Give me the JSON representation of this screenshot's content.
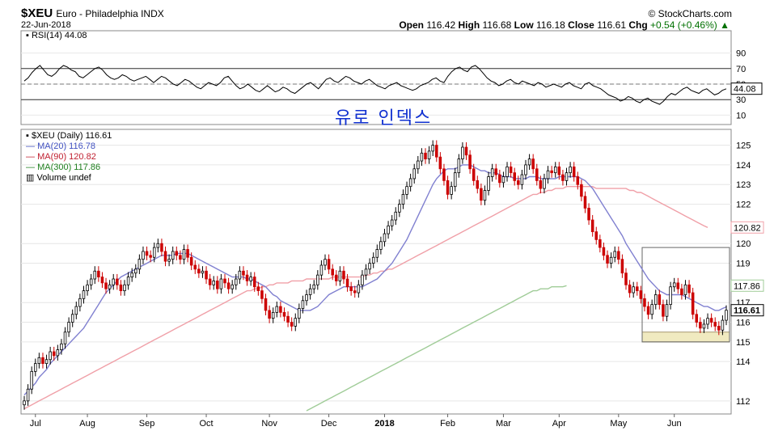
{
  "header": {
    "symbol": "$XEU",
    "name": "Euro - Philadelphia INDX",
    "date": "22-Jun-2018",
    "source": "© StockCharts.com",
    "open_label": "Open",
    "open": "116.42",
    "high_label": "High",
    "high": "116.68",
    "low_label": "Low",
    "low": "116.18",
    "close_label": "Close",
    "close": "116.61",
    "chg_label": "Chg",
    "chg": "+0.54 (+0.46%)"
  },
  "annotation": "유로 인덱스",
  "colors": {
    "up": "#000000",
    "down": "#cc0000",
    "ma20": "#8080d0",
    "ma90": "#f0a0a8",
    "ma300": "#a0cc98",
    "rsi": "#000000",
    "highlight_box": "#f0eac0"
  },
  "chart_data": [
    {
      "type": "line",
      "panel": "RSI",
      "legend": "RSI(14) 44.08",
      "current_value": "44.08",
      "ylim": [
        0,
        100
      ],
      "reference_lines": [
        30,
        50,
        70
      ],
      "y_ticks": [
        "90",
        "70",
        "50",
        "30",
        "10"
      ],
      "values": [
        54,
        58,
        65,
        70,
        74,
        68,
        62,
        60,
        64,
        70,
        74,
        72,
        68,
        66,
        60,
        58,
        62,
        66,
        70,
        72,
        68,
        62,
        58,
        56,
        58,
        62,
        60,
        56,
        54,
        56,
        58,
        60,
        56,
        52,
        56,
        60,
        58,
        54,
        50,
        48,
        52,
        56,
        54,
        50,
        46,
        44,
        48,
        52,
        50,
        48,
        52,
        58,
        60,
        54,
        48,
        44,
        46,
        50,
        46,
        42,
        40,
        44,
        48,
        44,
        40,
        42,
        46,
        44,
        40,
        38,
        42,
        46,
        50,
        52,
        48,
        44,
        50,
        56,
        58,
        54,
        52,
        56,
        60,
        58,
        54,
        52,
        50,
        54,
        56,
        52,
        48,
        46,
        44,
        48,
        50,
        52,
        48,
        46,
        44,
        42,
        44,
        48,
        50,
        52,
        56,
        58,
        54,
        52,
        60,
        66,
        70,
        72,
        68,
        66,
        72,
        74,
        70,
        64,
        58,
        54,
        52,
        48,
        50,
        54,
        56,
        52,
        50,
        54,
        52,
        50,
        48,
        52,
        50,
        46,
        48,
        50,
        48,
        46,
        50,
        52,
        48,
        46,
        44,
        50,
        52,
        48,
        46,
        44,
        40,
        36,
        34,
        32,
        28,
        30,
        34,
        32,
        28,
        26,
        30,
        32,
        28,
        26,
        24,
        28,
        34,
        38,
        36,
        40,
        44,
        46,
        42,
        40,
        38,
        42,
        44,
        40,
        36,
        38,
        42,
        44
      ]
    },
    {
      "type": "candlestick",
      "panel": "Price",
      "legend": [
        "$XEU (Daily) 116.61",
        "MA(20) 116.78",
        "MA(90) 120.82",
        "MA(300) 117.86",
        "Volume undef"
      ],
      "y_ticks": [
        "125",
        "124",
        "123",
        "122",
        "120",
        "119",
        "117",
        "116",
        "115",
        "114",
        "112"
      ],
      "price_tag": "116.61",
      "ma_tags": {
        "ma90": "120.82",
        "ma300": "117.86"
      },
      "x_labels": [
        "Jul",
        "Aug",
        "Sep",
        "Oct",
        "Nov",
        "Dec",
        "2018",
        "Feb",
        "Mar",
        "Apr",
        "May",
        "Jun"
      ],
      "closes": [
        112.0,
        112.6,
        113.5,
        113.9,
        114.2,
        113.9,
        114.1,
        114.5,
        114.3,
        114.6,
        114.9,
        115.5,
        116.0,
        116.4,
        116.8,
        117.2,
        117.6,
        117.9,
        118.2,
        118.6,
        118.3,
        118.0,
        117.7,
        117.9,
        118.2,
        117.9,
        117.6,
        117.9,
        118.3,
        118.5,
        118.7,
        119.2,
        119.6,
        119.4,
        119.3,
        119.8,
        120.0,
        119.6,
        119.1,
        119.2,
        119.6,
        119.4,
        119.2,
        119.7,
        119.3,
        118.9,
        118.7,
        118.5,
        118.6,
        118.2,
        117.9,
        118.1,
        117.7,
        118.2,
        118.0,
        117.7,
        117.9,
        118.2,
        118.6,
        118.4,
        118.1,
        118.3,
        117.8,
        117.6,
        117.2,
        116.6,
        116.2,
        116.5,
        116.8,
        116.5,
        116.3,
        116.0,
        115.8,
        116.2,
        116.7,
        117.1,
        117.4,
        117.7,
        117.9,
        118.4,
        118.9,
        119.2,
        118.7,
        118.4,
        118.1,
        118.6,
        118.2,
        117.8,
        117.6,
        117.5,
        117.9,
        118.4,
        118.7,
        119.0,
        119.3,
        119.7,
        120.1,
        120.5,
        120.9,
        121.2,
        121.6,
        122.0,
        122.5,
        122.9,
        123.3,
        123.8,
        124.2,
        124.6,
        124.3,
        124.7,
        125.0,
        124.4,
        123.8,
        123.2,
        122.5,
        122.9,
        123.6,
        124.3,
        124.9,
        124.5,
        123.8,
        123.2,
        122.8,
        122.2,
        122.7,
        123.4,
        123.8,
        123.5,
        123.1,
        123.4,
        123.9,
        123.6,
        123.2,
        123.0,
        123.5,
        124.0,
        124.3,
        123.8,
        123.2,
        122.8,
        123.3,
        123.7,
        123.6,
        123.9,
        123.5,
        123.2,
        123.6,
        123.9,
        123.4,
        123.0,
        122.4,
        121.8,
        121.2,
        120.6,
        120.2,
        119.8,
        119.4,
        119.0,
        119.3,
        119.6,
        119.2,
        118.5,
        117.9,
        117.5,
        117.8,
        117.6,
        117.2,
        116.8,
        116.4,
        116.9,
        117.4,
        116.9,
        116.3,
        116.9,
        117.8,
        118.0,
        117.7,
        117.4,
        117.9,
        117.5,
        116.4,
        116.0,
        115.7,
        115.9,
        116.2,
        116.0,
        115.8,
        115.6,
        116.1,
        116.61
      ],
      "ma20": [
        112.3,
        112.5,
        112.7,
        112.9,
        113.2,
        113.4,
        113.6,
        113.9,
        114.1,
        114.3,
        114.5,
        114.7,
        114.9,
        115.1,
        115.3,
        115.5,
        115.7,
        116.0,
        116.3,
        116.6,
        116.9,
        117.2,
        117.5,
        117.7,
        117.9,
        118.1,
        118.3,
        118.4,
        118.5,
        118.6,
        118.7,
        118.8,
        118.9,
        119.0,
        119.1,
        119.2,
        119.3,
        119.4,
        119.4,
        119.4,
        119.4,
        119.5,
        119.5,
        119.5,
        119.5,
        119.4,
        119.3,
        119.2,
        119.1,
        119.0,
        118.9,
        118.8,
        118.7,
        118.6,
        118.5,
        118.4,
        118.3,
        118.3,
        118.3,
        118.3,
        118.2,
        118.2,
        118.1,
        118.0,
        117.9,
        117.8,
        117.6,
        117.4,
        117.3,
        117.1,
        117.0,
        116.9,
        116.8,
        116.7,
        116.6,
        116.6,
        116.6,
        116.6,
        116.7,
        116.8,
        117.0,
        117.2,
        117.4,
        117.5,
        117.6,
        117.7,
        117.8,
        117.8,
        117.8,
        117.8,
        117.8,
        117.8,
        117.9,
        118.0,
        118.1,
        118.2,
        118.4,
        118.6,
        118.8,
        119.0,
        119.3,
        119.6,
        119.9,
        120.2,
        120.6,
        121.0,
        121.4,
        121.8,
        122.2,
        122.6,
        123.0,
        123.3,
        123.5,
        123.7,
        123.8,
        123.8,
        123.8,
        123.9,
        124.0,
        124.0,
        124.0,
        123.9,
        123.8,
        123.7,
        123.7,
        123.6,
        123.6,
        123.6,
        123.5,
        123.4,
        123.4,
        123.4,
        123.3,
        123.3,
        123.3,
        123.3,
        123.4,
        123.4,
        123.4,
        123.3,
        123.3,
        123.3,
        123.3,
        123.3,
        123.4,
        123.4,
        123.4,
        123.4,
        123.4,
        123.4,
        123.3,
        123.2,
        123.0,
        122.8,
        122.5,
        122.2,
        121.9,
        121.6,
        121.3,
        121.0,
        120.7,
        120.4,
        120.0,
        119.7,
        119.4,
        119.1,
        118.8,
        118.5,
        118.2,
        118.0,
        117.8,
        117.6,
        117.5,
        117.4,
        117.4,
        117.4,
        117.4,
        117.4,
        117.3,
        117.2,
        117.1,
        117.0,
        116.9,
        116.8,
        116.8,
        116.7,
        116.6,
        116.6,
        116.7,
        116.78
      ],
      "ma90": [
        111.6,
        111.7,
        111.8,
        111.9,
        112.0,
        112.1,
        112.2,
        112.3,
        112.4,
        112.5,
        112.6,
        112.7,
        112.8,
        112.9,
        113.0,
        113.1,
        113.2,
        113.3,
        113.4,
        113.5,
        113.6,
        113.7,
        113.8,
        113.9,
        114.0,
        114.1,
        114.2,
        114.3,
        114.4,
        114.5,
        114.6,
        114.7,
        114.8,
        114.9,
        115.0,
        115.1,
        115.2,
        115.3,
        115.4,
        115.5,
        115.6,
        115.7,
        115.8,
        115.9,
        116.0,
        116.1,
        116.2,
        116.3,
        116.4,
        116.5,
        116.6,
        116.7,
        116.8,
        116.9,
        117.0,
        117.1,
        117.2,
        117.3,
        117.4,
        117.5,
        117.6,
        117.6,
        117.7,
        117.7,
        117.8,
        117.8,
        117.9,
        117.9,
        118.0,
        118.0,
        118.0,
        118.0,
        118.1,
        118.1,
        118.1,
        118.1,
        118.2,
        118.2,
        118.2,
        118.2,
        118.2,
        118.2,
        118.2,
        118.3,
        118.3,
        118.3,
        118.3,
        118.3,
        118.3,
        118.3,
        118.3,
        118.3,
        118.4,
        118.4,
        118.5,
        118.5,
        118.6,
        118.6,
        118.7,
        118.7,
        118.8,
        118.9,
        119.0,
        119.1,
        119.2,
        119.3,
        119.4,
        119.5,
        119.6,
        119.7,
        119.8,
        119.9,
        120.0,
        120.1,
        120.2,
        120.3,
        120.4,
        120.5,
        120.6,
        120.7,
        120.8,
        120.9,
        121.0,
        121.1,
        121.2,
        121.3,
        121.4,
        121.5,
        121.6,
        121.7,
        121.8,
        121.9,
        122.0,
        122.1,
        122.2,
        122.3,
        122.4,
        122.5,
        122.5,
        122.6,
        122.6,
        122.7,
        122.7,
        122.8,
        122.8,
        122.8,
        122.9,
        122.9,
        122.9,
        122.9,
        122.9,
        122.9,
        122.9,
        122.9,
        122.8,
        122.8,
        122.8,
        122.8,
        122.8,
        122.8,
        122.8,
        122.8,
        122.8,
        122.7,
        122.7,
        122.6,
        122.6,
        122.5,
        122.4,
        122.3,
        122.2,
        122.1,
        122.0,
        121.9,
        121.8,
        121.7,
        121.6,
        121.5,
        121.4,
        121.3,
        121.2,
        121.1,
        121.0,
        120.9,
        120.82
      ],
      "ma300": [
        null,
        null,
        null,
        null,
        null,
        null,
        null,
        null,
        null,
        null,
        null,
        null,
        null,
        null,
        null,
        null,
        null,
        null,
        null,
        null,
        null,
        null,
        null,
        null,
        null,
        null,
        null,
        null,
        null,
        null,
        null,
        null,
        null,
        null,
        null,
        null,
        null,
        null,
        null,
        null,
        null,
        null,
        null,
        null,
        null,
        null,
        null,
        null,
        null,
        null,
        null,
        null,
        null,
        null,
        null,
        null,
        null,
        null,
        null,
        null,
        null,
        null,
        null,
        null,
        null,
        null,
        null,
        null,
        null,
        null,
        null,
        null,
        null,
        null,
        null,
        null,
        111.5,
        111.6,
        111.7,
        111.8,
        111.9,
        112.0,
        112.1,
        112.2,
        112.3,
        112.4,
        112.5,
        112.6,
        112.7,
        112.8,
        112.9,
        113.0,
        113.1,
        113.2,
        113.3,
        113.4,
        113.5,
        113.6,
        113.7,
        113.8,
        113.9,
        114.0,
        114.1,
        114.2,
        114.3,
        114.4,
        114.5,
        114.6,
        114.7,
        114.8,
        114.9,
        115.0,
        115.1,
        115.2,
        115.3,
        115.4,
        115.5,
        115.6,
        115.7,
        115.8,
        115.9,
        116.0,
        116.1,
        116.2,
        116.3,
        116.4,
        116.5,
        116.6,
        116.7,
        116.8,
        116.9,
        117.0,
        117.1,
        117.2,
        117.3,
        117.4,
        117.5,
        117.6,
        117.6,
        117.7,
        117.7,
        117.7,
        117.8,
        117.8,
        117.8,
        117.8,
        117.86
      ]
    }
  ]
}
